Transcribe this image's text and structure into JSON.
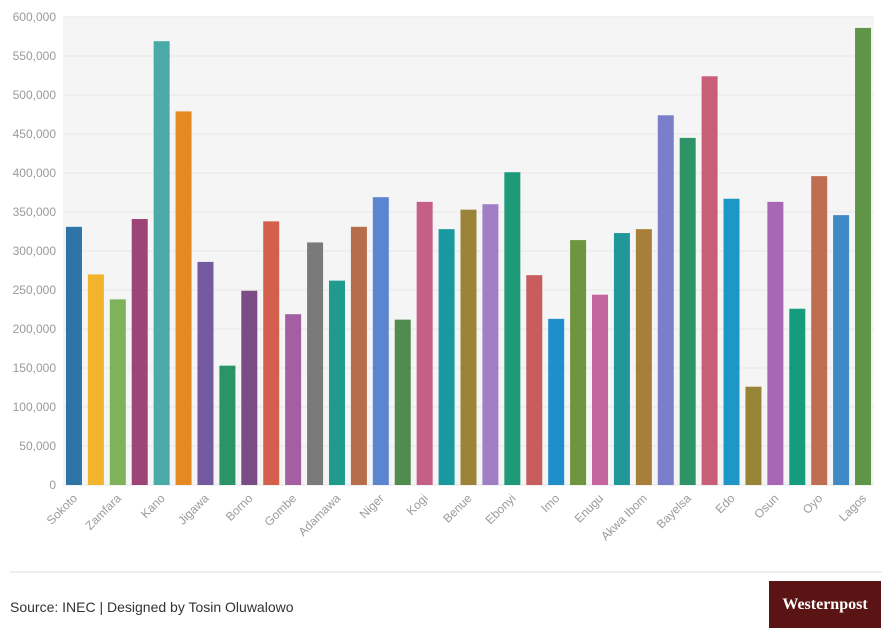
{
  "chart_data": {
    "type": "bar",
    "categories": [
      "Sokoto",
      null,
      "Zamfara",
      null,
      "Kano",
      null,
      "Jigawa",
      null,
      "Borno",
      null,
      "Gombe",
      null,
      "Adamawa",
      null,
      "Niger",
      null,
      "Kogi",
      null,
      "Benue",
      null,
      "Ebonyi",
      null,
      "Imo",
      null,
      "Enugu",
      null,
      "Akwa Ibom",
      null,
      "Bayelsa",
      null,
      "Edo",
      null,
      "Osun",
      null,
      "Oyo",
      null,
      "Lagos"
    ],
    "values": [
      331000,
      270000,
      238000,
      341000,
      569000,
      479000,
      286000,
      153000,
      249000,
      338000,
      219000,
      311000,
      262000,
      331000,
      369000,
      212000,
      363000,
      328000,
      353000,
      360000,
      401000,
      269000,
      213000,
      314000,
      244000,
      323000,
      328000,
      474000,
      445000,
      524000,
      367000,
      126000,
      363000,
      226000,
      396000,
      346000,
      586000
    ],
    "colors": [
      "#2e74a6",
      "#f2b42a",
      "#7fb35a",
      "#9e4578",
      "#4aaaa8",
      "#e58a22",
      "#735a9e",
      "#2a9466",
      "#7b4b86",
      "#d45f4d",
      "#a45fa3",
      "#7a7a7a",
      "#1f9a8c",
      "#b56d4a",
      "#5b86cf",
      "#508c4e",
      "#c65f85",
      "#1a98a0",
      "#9b8339",
      "#a07ec4",
      "#1e9a78",
      "#c75d5d",
      "#1f8fcc",
      "#6f963f",
      "#c565a0",
      "#21979a",
      "#a87f3a",
      "#7b7fcb",
      "#2e9467",
      "#c95f76",
      "#1e96c6",
      "#978436",
      "#a867b4",
      "#159c7d",
      "#bf6e52",
      "#3f89c7",
      "#5f9548"
    ],
    "ylim": [
      0,
      600000
    ],
    "yticks": [
      0,
      {
        "value": 50000,
        "label": "50,000"
      },
      {
        "value": 100000,
        "label": "100,000"
      },
      {
        "value": 150000,
        "label": "150,000"
      },
      {
        "value": 200000,
        "label": "200,000"
      },
      {
        "value": 250000,
        "label": "250,000"
      },
      {
        "value": 300000,
        "label": "300,000"
      },
      {
        "value": 350000,
        "label": "350,000"
      },
      {
        "value": 400000,
        "label": "400,000"
      },
      {
        "value": 450000,
        "label": "450,000"
      },
      {
        "value": 500000,
        "label": "500,000"
      },
      {
        "value": 550000,
        "label": "550,000"
      },
      {
        "value": 600000,
        "label": "600,000"
      }
    ],
    "grid": true
  },
  "footer": {
    "source": "Source: INEC | Designed by Tosin Oluwalowo",
    "logo": "Westernpost"
  }
}
